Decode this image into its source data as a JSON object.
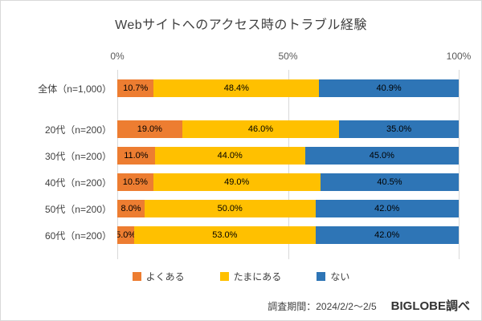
{
  "chart_data": {
    "type": "bar",
    "orientation": "horizontal",
    "stacked": true,
    "title": "Webサイトへのアクセス時のトラブル経験",
    "categories": [
      "全体（n=1,000）",
      "20代（n=200）",
      "30代（n=200）",
      "40代（n=200）",
      "50代（n=200）",
      "60代（n=200）"
    ],
    "series": [
      {
        "name": "よくある",
        "color": "#ED7D31",
        "values": [
          10.7,
          19.0,
          11.0,
          10.5,
          8.0,
          5.0
        ]
      },
      {
        "name": "たまにある",
        "color": "#FFC000",
        "values": [
          48.4,
          46.0,
          44.0,
          49.0,
          50.0,
          53.0
        ]
      },
      {
        "name": "ない",
        "color": "#2E75B6",
        "values": [
          40.9,
          35.0,
          45.0,
          40.5,
          42.0,
          42.0
        ]
      }
    ],
    "xlim": [
      0,
      100
    ],
    "xticks": [
      "0%",
      "50%",
      "100%"
    ],
    "value_suffix": "%",
    "legend_position": "bottom",
    "group_gap_after_index": 0
  },
  "footer": {
    "survey_period": "調査期間：2024/2/2～2/5",
    "source": "BIGLOBE調べ"
  }
}
